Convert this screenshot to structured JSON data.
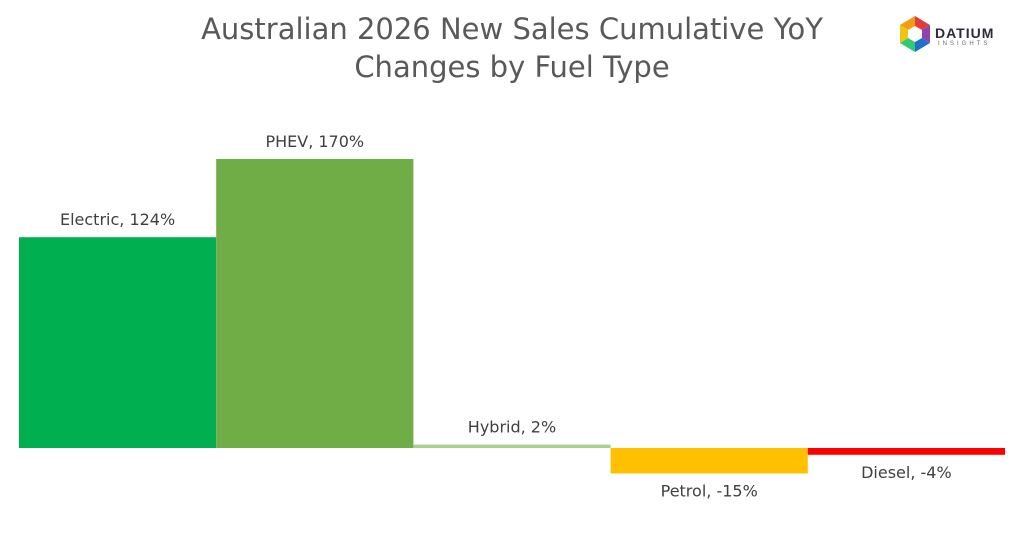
{
  "chart_data": {
    "type": "bar",
    "title": "Australian 2026 New Sales Cumulative YoY Changes by Fuel Type",
    "categories": [
      "Electric",
      "PHEV",
      "Hybrid",
      "Petrol",
      "Diesel"
    ],
    "values": [
      124,
      170,
      2,
      -15,
      -4
    ],
    "value_suffix": "%",
    "colors": [
      "#00b050",
      "#70ad47",
      "#a9d18e",
      "#ffc000",
      "#ff0000"
    ],
    "grid": false,
    "legend": "none"
  },
  "title_lines": [
    "Australian 2026 New Sales Cumulative YoY",
    "Changes by Fuel Type"
  ],
  "logo": {
    "word": "DATIUM",
    "sub": "INSIGHTS"
  }
}
